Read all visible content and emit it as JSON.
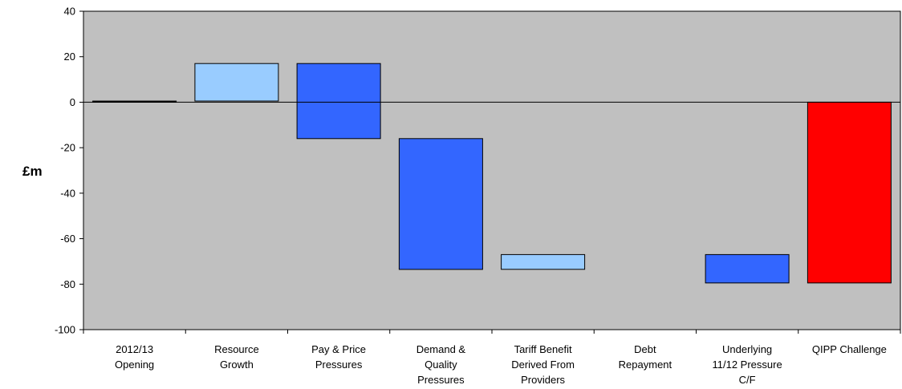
{
  "chart_data": {
    "type": "bar",
    "subtype": "waterfall",
    "title": "",
    "xlabel": "",
    "ylabel": "£m",
    "ylim": [
      -100,
      40
    ],
    "yticks": [
      40,
      20,
      0,
      -20,
      -40,
      -60,
      -80,
      -100
    ],
    "grid": false,
    "legend": "none",
    "colors": {
      "plot_background": "#c0c0c0",
      "light_bar": "#99ccff",
      "dark_bar": "#3366ff",
      "total_bar": "#ff0000",
      "opening_bar": "#000000"
    },
    "categories": [
      [
        "2012/13",
        "Opening"
      ],
      [
        "Resource",
        "Growth"
      ],
      [
        "Pay & Price",
        "Pressures"
      ],
      [
        "Demand &",
        "Quality",
        "Pressures"
      ],
      [
        "Tariff Benefit",
        "Derived From",
        "Providers"
      ],
      [
        "Debt",
        "Repayment"
      ],
      [
        "Underlying",
        "11/12 Pressure",
        "C/F"
      ],
      [
        "QIPP Challenge"
      ]
    ],
    "bars": [
      {
        "start": 0,
        "end": 0.5,
        "color": "opening_bar"
      },
      {
        "start": 0.5,
        "end": 17,
        "color": "light_bar"
      },
      {
        "start": 17,
        "end": -16,
        "color": "dark_bar"
      },
      {
        "start": -16,
        "end": -73.5,
        "color": "dark_bar"
      },
      {
        "start": -73.5,
        "end": -67,
        "color": "light_bar"
      },
      {
        "start": -67,
        "end": -67,
        "color": "none"
      },
      {
        "start": -67,
        "end": -79.5,
        "color": "dark_bar"
      },
      {
        "start": 0,
        "end": -79.5,
        "color": "total_bar"
      }
    ]
  }
}
